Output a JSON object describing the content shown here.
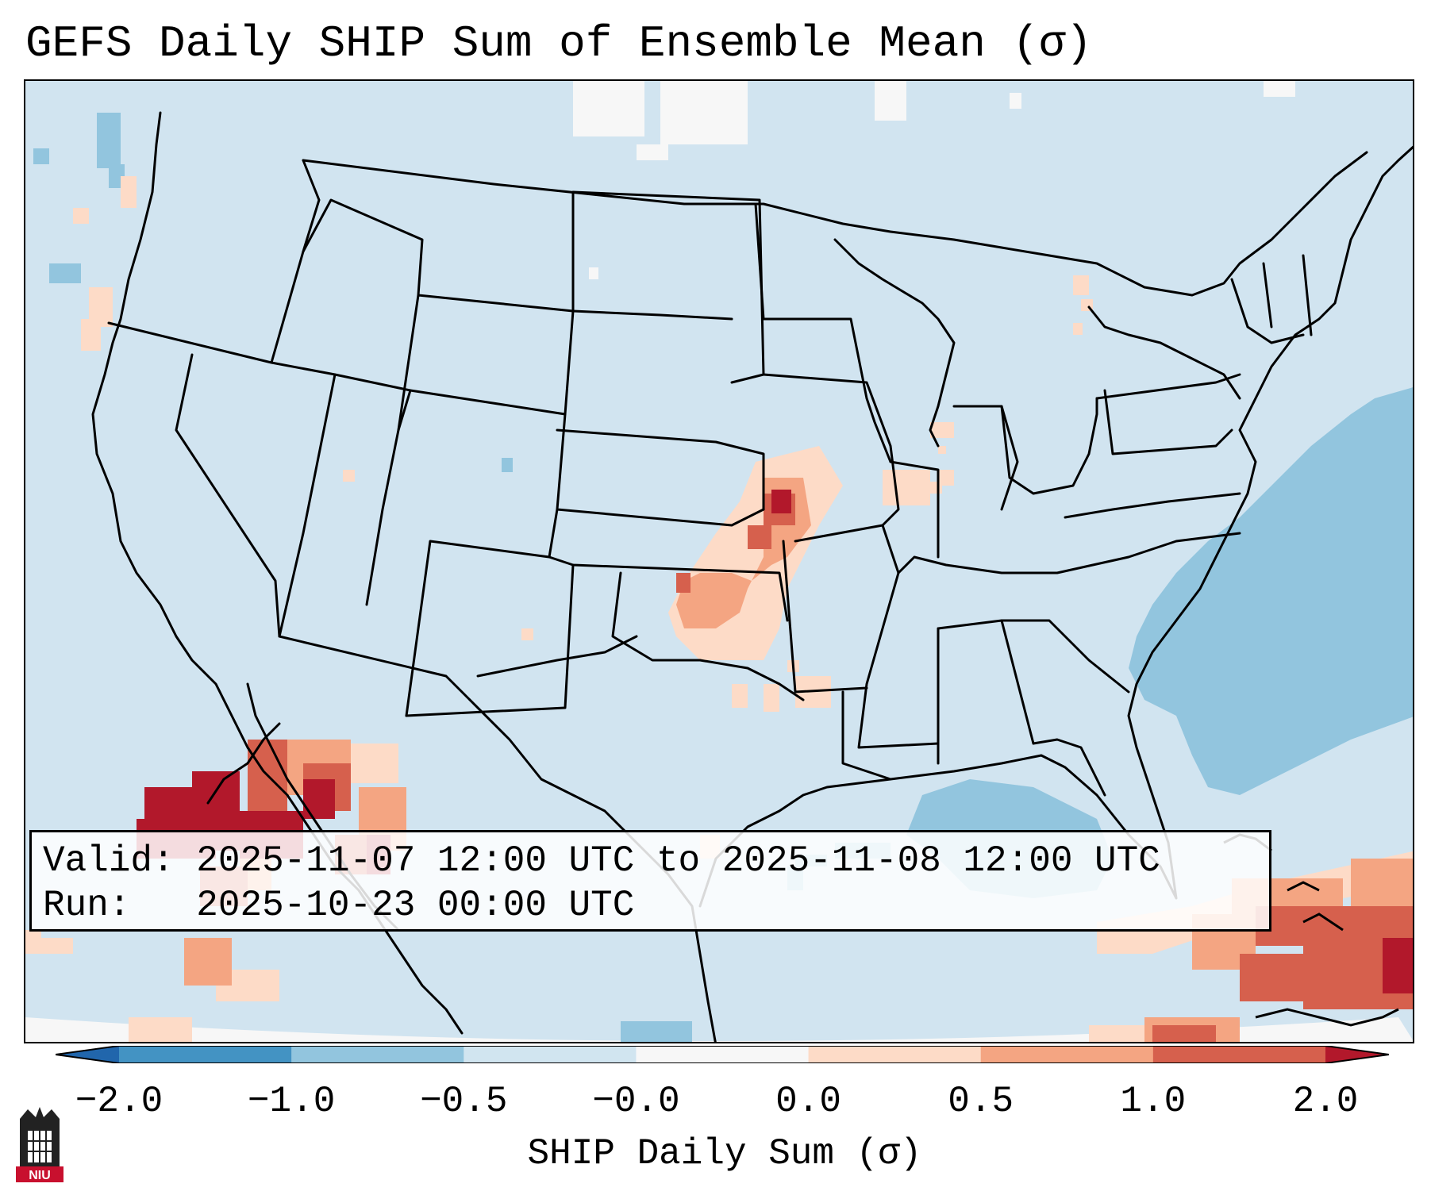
{
  "title": "GEFS Daily SHIP Sum of Ensemble Mean (σ)",
  "info": {
    "valid_label": "Valid:",
    "valid_value": "2025-11-07 12:00 UTC to 2025-11-08 12:00 UTC",
    "run_label": "Run:",
    "run_value": "2025-10-23 00:00 UTC"
  },
  "colorbar": {
    "label": "SHIP Daily Sum (σ)",
    "ticks": [
      "−2.0",
      "−1.0",
      "−0.5",
      "−0.0",
      "0.0",
      "0.5",
      "1.0",
      "2.0"
    ],
    "bins": [
      {
        "color": "#4393c3"
      },
      {
        "color": "#92c5de"
      },
      {
        "color": "#d1e5f0"
      },
      {
        "color": "#f7f7f7"
      },
      {
        "color": "#fddbc7"
      },
      {
        "color": "#f4a582"
      },
      {
        "color": "#d6604d"
      }
    ],
    "under_color": "#2166ac",
    "over_color": "#b2182b"
  },
  "palette": {
    "background_bin": "#d1e4f0",
    "near_zero": "#f7f7f7",
    "neg_mid": "#92c5de",
    "pos_low": "#fddbc7",
    "pos_mid": "#f4a582",
    "pos_high": "#d6604d",
    "pos_max": "#b2182b",
    "outline": "#000000"
  },
  "logo": {
    "text": "NIU",
    "color": "#c8102e"
  }
}
